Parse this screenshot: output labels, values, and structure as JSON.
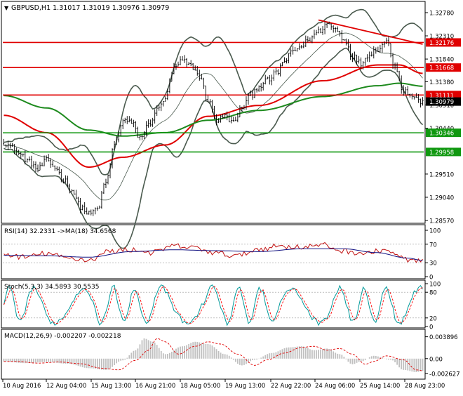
{
  "colors": {
    "background": "#ffffff",
    "axis": "#000000",
    "candle": "#000000",
    "bollinger": "#4a5a4e",
    "ma_red": "#e00000",
    "ma_green": "#1d8a1d",
    "hline_red": "#e00000",
    "hline_green": "#109810",
    "trend": "#e00000",
    "rsi_line": "#c01010",
    "rsi_ma": "#101080",
    "stoch_main": "#00999a",
    "stoch_signal": "#ff0000",
    "macd_hist": "#c0c0c0",
    "macd_signal": "#e00000",
    "price_tag_red": "#e00000",
    "price_tag_green": "#109810",
    "price_tag_current": "#000000"
  },
  "chart_data": [
    {
      "panel": "price",
      "type": "candlestick",
      "title": "GBPUSD,H1  1.31017 1.31019 1.30976 1.30979",
      "ylim": [
        1.2857,
        1.3278
      ],
      "y_ticks": [
        "1.32780",
        "1.32310",
        "1.31840",
        "1.31380",
        "1.30910",
        "1.30440",
        "1.29510",
        "1.29040",
        "1.28570"
      ],
      "x_ticks": [
        "10 Aug 2016",
        "12 Aug 04:00",
        "15 Aug 13:00",
        "16 Aug 21:00",
        "18 Aug 05:00",
        "19 Aug 13:00",
        "22 Aug 22:00",
        "24 Aug 06:00",
        "25 Aug 14:00",
        "28 Aug 23:00"
      ],
      "close_anchors": [
        [
          0,
          1.3015
        ],
        [
          4,
          1.3005
        ],
        [
          8,
          1.299
        ],
        [
          12,
          1.2975
        ],
        [
          16,
          1.296
        ],
        [
          20,
          1.2978
        ],
        [
          24,
          1.2965
        ],
        [
          28,
          1.294
        ],
        [
          32,
          1.2918
        ],
        [
          36,
          1.2885
        ],
        [
          40,
          1.287
        ],
        [
          44,
          1.288
        ],
        [
          48,
          1.2935
        ],
        [
          52,
          1.301
        ],
        [
          56,
          1.306
        ],
        [
          60,
          1.3055
        ],
        [
          64,
          1.3025
        ],
        [
          68,
          1.305
        ],
        [
          72,
          1.308
        ],
        [
          76,
          1.3105
        ],
        [
          80,
          1.3165
        ],
        [
          84,
          1.318
        ],
        [
          88,
          1.317
        ],
        [
          92,
          1.315
        ],
        [
          96,
          1.31
        ],
        [
          100,
          1.306
        ],
        [
          104,
          1.3068
        ],
        [
          108,
          1.3055
        ],
        [
          112,
          1.3085
        ],
        [
          116,
          1.311
        ],
        [
          120,
          1.313
        ],
        [
          124,
          1.314
        ],
        [
          128,
          1.3155
        ],
        [
          132,
          1.318
        ],
        [
          136,
          1.32
        ],
        [
          140,
          1.321
        ],
        [
          144,
          1.3225
        ],
        [
          148,
          1.324
        ],
        [
          152,
          1.3255
        ],
        [
          156,
          1.3245
        ],
        [
          160,
          1.3225
        ],
        [
          164,
          1.319
        ],
        [
          168,
          1.3175
        ],
        [
          172,
          1.3195
        ],
        [
          176,
          1.3205
        ],
        [
          180,
          1.322
        ],
        [
          184,
          1.317
        ],
        [
          188,
          1.312
        ],
        [
          192,
          1.311
        ],
        [
          196,
          1.3098
        ]
      ],
      "h_lines": [
        {
          "value": 1.32176,
          "label": "1.32176",
          "color": "red"
        },
        {
          "value": 1.31668,
          "label": "1.31668",
          "color": "red"
        },
        {
          "value": 1.31111,
          "label": "1.31111",
          "color": "red"
        },
        {
          "value": 1.30346,
          "label": "1.30346",
          "color": "green"
        },
        {
          "value": 1.29958,
          "label": "1.29958",
          "color": "green"
        }
      ],
      "current_price": {
        "value": 1.30979,
        "label": "1.30979"
      },
      "trend_line": [
        [
          148,
          1.3263
        ],
        [
          197,
          1.3214
        ]
      ],
      "moving_averages": [
        {
          "points": [
            [
              0,
              1.307
            ],
            [
              20,
              1.3035
            ],
            [
              40,
              1.2965
            ],
            [
              56,
              1.2985
            ],
            [
              76,
              1.301
            ],
            [
              96,
              1.3068
            ],
            [
              120,
              1.309
            ],
            [
              150,
              1.314
            ],
            [
              176,
              1.3172
            ],
            [
              186,
              1.3172
            ],
            [
              197,
              1.3155
            ]
          ],
          "color": "red"
        },
        {
          "points": [
            [
              0,
              1.311
            ],
            [
              20,
              1.3085
            ],
            [
              40,
              1.304
            ],
            [
              56,
              1.3028
            ],
            [
              76,
              1.3035
            ],
            [
              96,
              1.306
            ],
            [
              120,
              1.308
            ],
            [
              150,
              1.3108
            ],
            [
              176,
              1.313
            ],
            [
              186,
              1.3135
            ],
            [
              197,
              1.3129
            ]
          ],
          "color": "green"
        }
      ],
      "bollinger": {
        "period": 20,
        "width": 2
      }
    },
    {
      "panel": "rsi",
      "type": "line",
      "title": "RSI(14) 32.2331  ->MA(18) 34.6568",
      "ylim": [
        0,
        100
      ],
      "y_ticks": [
        "100",
        "70",
        "30",
        "0"
      ],
      "rsi_anchors": [
        [
          0,
          48
        ],
        [
          10,
          42
        ],
        [
          20,
          50
        ],
        [
          30,
          40
        ],
        [
          40,
          36
        ],
        [
          50,
          55
        ],
        [
          60,
          58
        ],
        [
          70,
          52
        ],
        [
          80,
          66
        ],
        [
          90,
          62
        ],
        [
          100,
          50
        ],
        [
          110,
          45
        ],
        [
          120,
          60
        ],
        [
          130,
          66
        ],
        [
          140,
          64
        ],
        [
          150,
          68
        ],
        [
          160,
          55
        ],
        [
          170,
          50
        ],
        [
          180,
          58
        ],
        [
          186,
          42
        ],
        [
          192,
          35
        ],
        [
          197,
          32
        ]
      ],
      "ma_anchors": [
        [
          0,
          46
        ],
        [
          20,
          45
        ],
        [
          40,
          42
        ],
        [
          60,
          54
        ],
        [
          80,
          58
        ],
        [
          100,
          56
        ],
        [
          120,
          54
        ],
        [
          140,
          60
        ],
        [
          160,
          60
        ],
        [
          175,
          52
        ],
        [
          190,
          40
        ],
        [
          197,
          35
        ]
      ]
    },
    {
      "panel": "stochastic",
      "type": "line",
      "title": "Stoch(5,3,3) 34.5893 30.5535",
      "ylim": [
        0,
        100
      ],
      "y_ticks": [
        "100",
        "80",
        "20",
        "0"
      ]
    },
    {
      "panel": "macd",
      "type": "bar",
      "title": "MACD(12,26,9) -0.002207 -0.002218",
      "ylim": [
        -0.0034,
        0.0046
      ],
      "y_ticks": [
        "0.003896",
        "0.00",
        "-0.002627"
      ],
      "macd_anchors": [
        [
          0,
          -0.0005
        ],
        [
          10,
          -0.0008
        ],
        [
          20,
          -0.0006
        ],
        [
          30,
          -0.0009
        ],
        [
          40,
          -0.0017
        ],
        [
          48,
          -0.002
        ],
        [
          56,
          -0.0003
        ],
        [
          62,
          0.0015
        ],
        [
          66,
          0.0036
        ],
        [
          70,
          0.003
        ],
        [
          76,
          0.0008
        ],
        [
          84,
          0.0022
        ],
        [
          90,
          0.003
        ],
        [
          96,
          0.0026
        ],
        [
          104,
          0.0008
        ],
        [
          112,
          -0.0012
        ],
        [
          118,
          -0.0002
        ],
        [
          126,
          0.001
        ],
        [
          134,
          0.002
        ],
        [
          140,
          0.0022
        ],
        [
          146,
          0.0015
        ],
        [
          152,
          0.0018
        ],
        [
          158,
          0.0008
        ],
        [
          164,
          -0.001
        ],
        [
          168,
          -0.0005
        ],
        [
          174,
          0.0005
        ],
        [
          182,
          -0.0002
        ],
        [
          188,
          -0.002
        ],
        [
          194,
          -0.0024
        ],
        [
          197,
          -0.0022
        ]
      ]
    }
  ]
}
